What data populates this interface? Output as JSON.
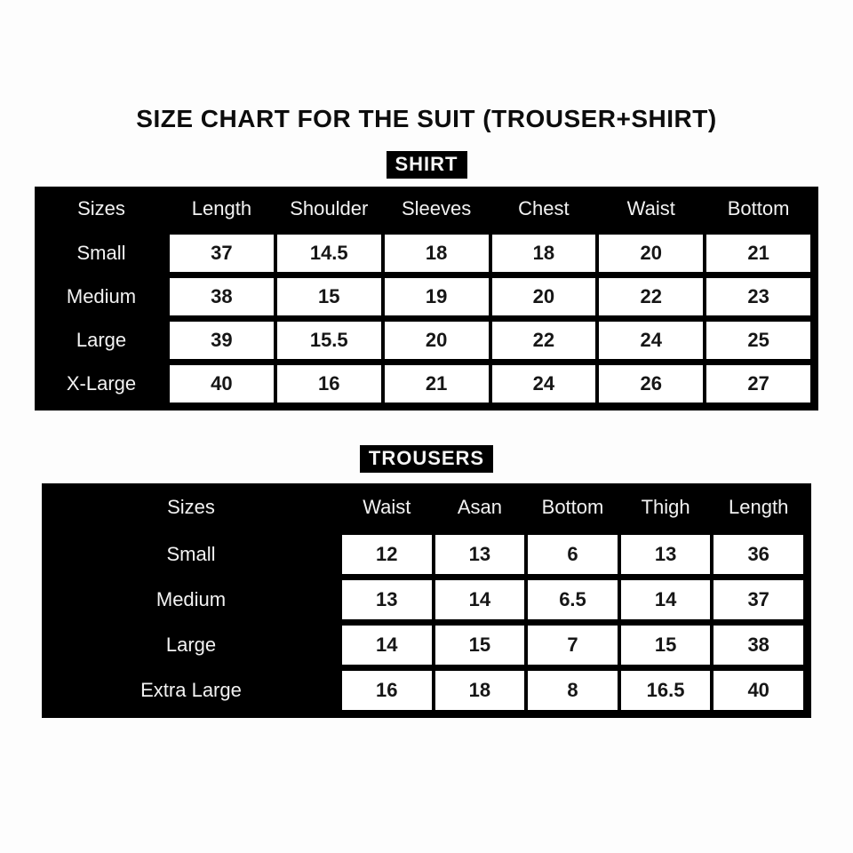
{
  "page": {
    "title": "SIZE CHART FOR THE SUIT (TROUSER+SHIRT)"
  },
  "shirt": {
    "label": "SHIRT",
    "columns": [
      "Sizes",
      "Length",
      "Shoulder",
      "Sleeves",
      "Chest",
      "Waist",
      "Bottom"
    ],
    "rows": [
      {
        "size": "Small",
        "values": [
          "37",
          "14.5",
          "18",
          "18",
          "20",
          "21"
        ]
      },
      {
        "size": "Medium",
        "values": [
          "38",
          "15",
          "19",
          "20",
          "22",
          "23"
        ]
      },
      {
        "size": "Large",
        "values": [
          "39",
          "15.5",
          "20",
          "22",
          "24",
          "25"
        ]
      },
      {
        "size": "X-Large",
        "values": [
          "40",
          "16",
          "21",
          "24",
          "26",
          "27"
        ]
      }
    ]
  },
  "trousers": {
    "label": "TROUSERS",
    "columns": [
      "Sizes",
      "Waist",
      "Asan",
      "Bottom",
      "Thigh",
      "Length"
    ],
    "rows": [
      {
        "size": "Small",
        "values": [
          "12",
          "13",
          "6",
          "13",
          "36"
        ]
      },
      {
        "size": "Medium",
        "values": [
          "13",
          "14",
          "6.5",
          "14",
          "37"
        ]
      },
      {
        "size": "Large",
        "values": [
          "14",
          "15",
          "7",
          "15",
          "38"
        ]
      },
      {
        "size": "Extra Large",
        "values": [
          "16",
          "18",
          "8",
          "16.5",
          "40"
        ]
      }
    ]
  },
  "colors": {
    "table_background": "#000000",
    "cell_background": "#ffffff",
    "header_text": "#f2f2f2",
    "cell_text": "#161616",
    "page_background": "#fdfdfd"
  }
}
